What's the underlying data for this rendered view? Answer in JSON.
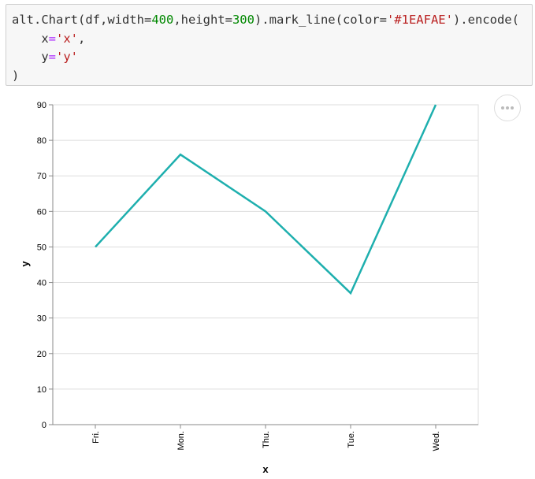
{
  "code": {
    "line1_prefix": "alt.Chart(df,width=",
    "width_value": "400",
    "line1_mid": ",height=",
    "height_value": "300",
    "line1_mid2": ").mark_line(color=",
    "color_string": "'#1EAFAE'",
    "line1_suffix": ").encode(",
    "line2_indent": "    ",
    "line2_key": "x",
    "line2_value": "'x'",
    "line2_comma": ",",
    "line3_indent": "    ",
    "line3_key": "y",
    "line3_value": "'y'",
    "line4": ")"
  },
  "toolbar": {
    "more_icon": "ellipsis-icon"
  },
  "colors": {
    "line": "#1EAFAE",
    "axis": "#888888",
    "grid": "#dddddd",
    "text": "#000000"
  },
  "chart_data": {
    "type": "line",
    "categories": [
      "Fri.",
      "Mon.",
      "Thu.",
      "Tue.",
      "Wed."
    ],
    "values": [
      50,
      76,
      60,
      37,
      90
    ],
    "xlabel": "x",
    "ylabel": "y",
    "ylim": [
      0,
      90
    ],
    "yticks": [
      0,
      10,
      20,
      30,
      40,
      50,
      60,
      70,
      80,
      90
    ],
    "grid": true
  }
}
